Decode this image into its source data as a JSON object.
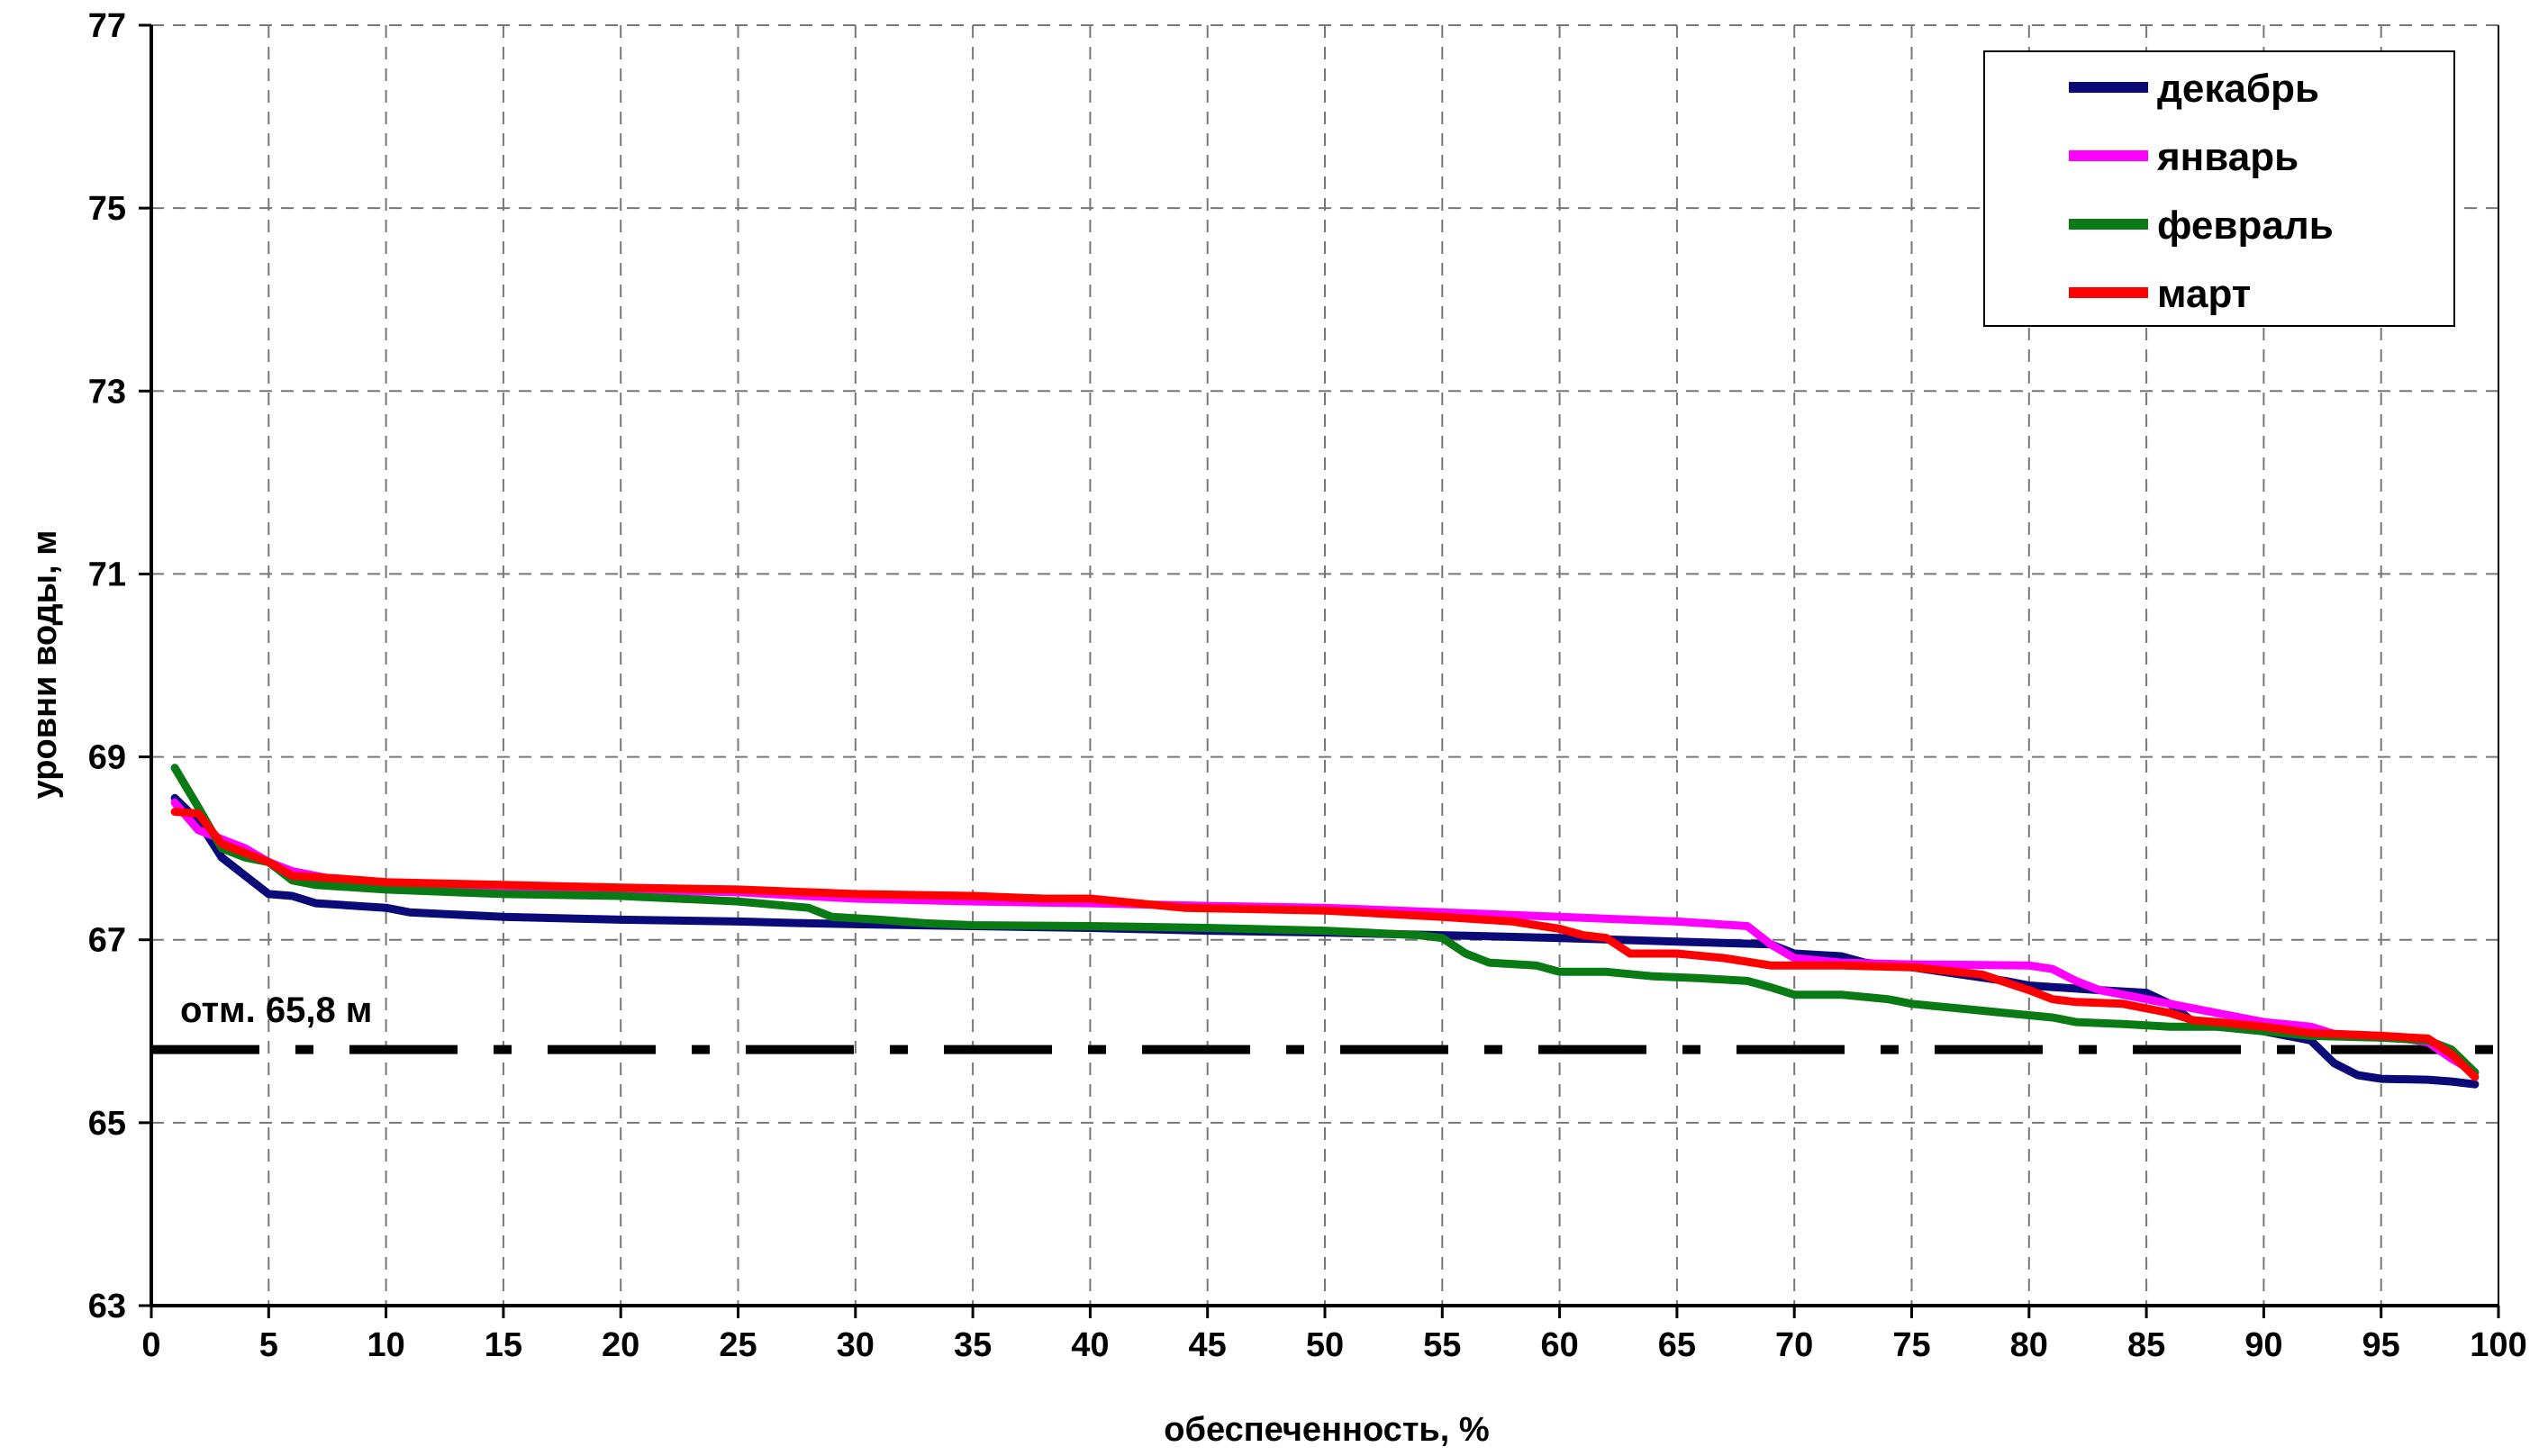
{
  "chart_data": {
    "type": "line",
    "xlabel": "обеспеченность, %",
    "ylabel": "уровни воды, м",
    "xlim": [
      0,
      100
    ],
    "ylim": [
      63,
      77
    ],
    "x_ticks": [
      "0",
      "5",
      "10",
      "15",
      "20",
      "25",
      "30",
      "35",
      "40",
      "45",
      "50",
      "55",
      "60",
      "65",
      "70",
      "75",
      "80",
      "85",
      "90",
      "95",
      "100"
    ],
    "y_ticks": [
      "63",
      "65",
      "67",
      "69",
      "71",
      "73",
      "75",
      "77"
    ],
    "grid": true,
    "legend_position": "top-right",
    "series": [
      {
        "name": "декабрь",
        "color": "#0a0a78",
        "points": [
          [
            1,
            68.55
          ],
          [
            2,
            68.3
          ],
          [
            3,
            67.9
          ],
          [
            4,
            67.7
          ],
          [
            5,
            67.5
          ],
          [
            6,
            67.48
          ],
          [
            7,
            67.4
          ],
          [
            10,
            67.35
          ],
          [
            11,
            67.3
          ],
          [
            15,
            67.25
          ],
          [
            20,
            67.22
          ],
          [
            25,
            67.2
          ],
          [
            28,
            67.18
          ],
          [
            30,
            67.17
          ],
          [
            35,
            67.15
          ],
          [
            40,
            67.13
          ],
          [
            45,
            67.1
          ],
          [
            50,
            67.08
          ],
          [
            55,
            67.05
          ],
          [
            60,
            67.02
          ],
          [
            65,
            66.98
          ],
          [
            69,
            66.95
          ],
          [
            70,
            66.85
          ],
          [
            72,
            66.82
          ],
          [
            73,
            66.75
          ],
          [
            75,
            66.7
          ],
          [
            79,
            66.55
          ],
          [
            80,
            66.5
          ],
          [
            83,
            66.45
          ],
          [
            85,
            66.42
          ],
          [
            86,
            66.3
          ],
          [
            87,
            66.1
          ],
          [
            88,
            66.05
          ],
          [
            90,
            66.0
          ],
          [
            92,
            65.9
          ],
          [
            93,
            65.65
          ],
          [
            94,
            65.52
          ],
          [
            95,
            65.48
          ],
          [
            97,
            65.47
          ],
          [
            98,
            65.45
          ],
          [
            99,
            65.42
          ]
        ]
      },
      {
        "name": "январь",
        "color": "#ff00ff",
        "points": [
          [
            1,
            68.5
          ],
          [
            2,
            68.2
          ],
          [
            3,
            68.1
          ],
          [
            4,
            68.0
          ],
          [
            5,
            67.85
          ],
          [
            6,
            67.75
          ],
          [
            8,
            67.65
          ],
          [
            10,
            67.6
          ],
          [
            15,
            67.55
          ],
          [
            20,
            67.55
          ],
          [
            25,
            67.52
          ],
          [
            30,
            67.45
          ],
          [
            35,
            67.42
          ],
          [
            40,
            67.4
          ],
          [
            45,
            67.37
          ],
          [
            50,
            67.35
          ],
          [
            55,
            67.3
          ],
          [
            60,
            67.25
          ],
          [
            65,
            67.2
          ],
          [
            68,
            67.15
          ],
          [
            69,
            66.95
          ],
          [
            70,
            66.8
          ],
          [
            72,
            66.75
          ],
          [
            75,
            66.73
          ],
          [
            80,
            66.72
          ],
          [
            81,
            66.68
          ],
          [
            82,
            66.55
          ],
          [
            83,
            66.45
          ],
          [
            85,
            66.35
          ],
          [
            87,
            66.25
          ],
          [
            88,
            66.2
          ],
          [
            90,
            66.1
          ],
          [
            92,
            66.05
          ],
          [
            93,
            65.97
          ],
          [
            95,
            65.95
          ],
          [
            96,
            65.92
          ],
          [
            97,
            65.88
          ],
          [
            98,
            65.7
          ],
          [
            99,
            65.55
          ]
        ]
      },
      {
        "name": "февраль",
        "color": "#0a7a14",
        "points": [
          [
            1,
            68.88
          ],
          [
            2,
            68.45
          ],
          [
            3,
            68.0
          ],
          [
            4,
            67.9
          ],
          [
            5,
            67.85
          ],
          [
            6,
            67.65
          ],
          [
            7,
            67.6
          ],
          [
            10,
            67.55
          ],
          [
            15,
            67.5
          ],
          [
            20,
            67.48
          ],
          [
            25,
            67.42
          ],
          [
            28,
            67.35
          ],
          [
            29,
            67.25
          ],
          [
            31,
            67.22
          ],
          [
            33,
            67.18
          ],
          [
            35,
            67.16
          ],
          [
            40,
            67.15
          ],
          [
            45,
            67.13
          ],
          [
            50,
            67.1
          ],
          [
            54,
            67.05
          ],
          [
            55,
            67.02
          ],
          [
            56,
            66.85
          ],
          [
            57,
            66.75
          ],
          [
            59,
            66.72
          ],
          [
            60,
            66.65
          ],
          [
            62,
            66.65
          ],
          [
            64,
            66.6
          ],
          [
            66,
            66.58
          ],
          [
            68,
            66.55
          ],
          [
            69,
            66.48
          ],
          [
            70,
            66.4
          ],
          [
            72,
            66.4
          ],
          [
            74,
            66.35
          ],
          [
            75,
            66.3
          ],
          [
            77,
            66.25
          ],
          [
            79,
            66.2
          ],
          [
            81,
            66.15
          ],
          [
            82,
            66.1
          ],
          [
            84,
            66.08
          ],
          [
            86,
            66.05
          ],
          [
            88,
            66.05
          ],
          [
            90,
            66.0
          ],
          [
            92,
            65.95
          ],
          [
            95,
            65.93
          ],
          [
            97,
            65.9
          ],
          [
            98,
            65.8
          ],
          [
            99,
            65.55
          ]
        ]
      },
      {
        "name": "март",
        "color": "#ff0000",
        "points": [
          [
            1,
            68.4
          ],
          [
            2,
            68.38
          ],
          [
            3,
            68.05
          ],
          [
            4,
            67.95
          ],
          [
            5,
            67.85
          ],
          [
            6,
            67.7
          ],
          [
            8,
            67.67
          ],
          [
            10,
            67.63
          ],
          [
            15,
            67.6
          ],
          [
            20,
            67.57
          ],
          [
            25,
            67.55
          ],
          [
            28,
            67.52
          ],
          [
            30,
            67.5
          ],
          [
            35,
            67.48
          ],
          [
            38,
            67.45
          ],
          [
            40,
            67.45
          ],
          [
            42,
            67.4
          ],
          [
            44,
            67.35
          ],
          [
            50,
            67.32
          ],
          [
            55,
            67.25
          ],
          [
            58,
            67.2
          ],
          [
            60,
            67.12
          ],
          [
            61,
            67.05
          ],
          [
            62,
            67.02
          ],
          [
            63,
            66.85
          ],
          [
            65,
            66.85
          ],
          [
            67,
            66.8
          ],
          [
            69,
            66.72
          ],
          [
            70,
            66.72
          ],
          [
            72,
            66.72
          ],
          [
            75,
            66.7
          ],
          [
            78,
            66.62
          ],
          [
            80,
            66.45
          ],
          [
            81,
            66.35
          ],
          [
            82,
            66.32
          ],
          [
            84,
            66.3
          ],
          [
            86,
            66.2
          ],
          [
            87,
            66.12
          ],
          [
            88,
            66.1
          ],
          [
            90,
            66.05
          ],
          [
            92,
            65.98
          ],
          [
            95,
            65.95
          ],
          [
            97,
            65.92
          ],
          [
            98,
            65.75
          ],
          [
            99,
            65.5
          ]
        ]
      }
    ],
    "reference_line": {
      "y": 65.8,
      "label": "отм. 65,8 м",
      "color": "#000000"
    }
  }
}
